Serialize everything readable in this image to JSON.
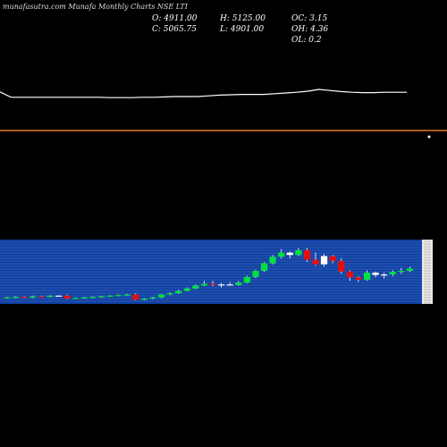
{
  "header": {
    "watermark": "munafasutra.com Munafa Monthly Charts NSE LTI",
    "open": "O: 4911.00",
    "high": "H: 5125.00",
    "oc": "OC: 3.15",
    "close": "C: 5065.75",
    "low": "L: 4901.00",
    "oh": "OH: 4.36",
    "ol": "OL: 0.2"
  },
  "colors": {
    "background": "#000000",
    "line": "#ffffff",
    "separator": "#e07b25",
    "panel": "#0f3fa0",
    "grid": "#4a78d0",
    "up": "#00e040",
    "down": "#e01010",
    "doji": "#ffffff"
  },
  "chart_data": [
    {
      "type": "line",
      "title": "",
      "ylim": [
        0,
        100
      ],
      "values": [
        93,
        78,
        78,
        78,
        78,
        78,
        78,
        78,
        78,
        78,
        77,
        77,
        77,
        78,
        78,
        79,
        80,
        80,
        80,
        82,
        84,
        85,
        86,
        86,
        86,
        88,
        90,
        92,
        95,
        100,
        97,
        94,
        92,
        91,
        91,
        92,
        92,
        92
      ]
    },
    {
      "type": "candlestick",
      "title": "",
      "ylim": [
        0,
        100
      ],
      "candles": [
        {
          "o": 7,
          "h": 9,
          "l": 6,
          "c": 8,
          "d": "up"
        },
        {
          "o": 8,
          "h": 10,
          "l": 7,
          "c": 9,
          "d": "up"
        },
        {
          "o": 9,
          "h": 10,
          "l": 7,
          "c": 8,
          "d": "down"
        },
        {
          "o": 8,
          "h": 11,
          "l": 7,
          "c": 10,
          "d": "up"
        },
        {
          "o": 10,
          "h": 11,
          "l": 8,
          "c": 9,
          "d": "down"
        },
        {
          "o": 9,
          "h": 12,
          "l": 8,
          "c": 11,
          "d": "up"
        },
        {
          "o": 11,
          "h": 12,
          "l": 10,
          "c": 11,
          "d": "doji"
        },
        {
          "o": 11,
          "h": 13,
          "l": 5,
          "c": 6,
          "d": "down"
        },
        {
          "o": 6,
          "h": 8,
          "l": 5,
          "c": 7,
          "d": "up"
        },
        {
          "o": 7,
          "h": 9,
          "l": 6,
          "c": 8,
          "d": "up"
        },
        {
          "o": 8,
          "h": 10,
          "l": 7,
          "c": 9,
          "d": "up"
        },
        {
          "o": 9,
          "h": 11,
          "l": 8,
          "c": 10,
          "d": "up"
        },
        {
          "o": 10,
          "h": 12,
          "l": 9,
          "c": 11,
          "d": "up"
        },
        {
          "o": 11,
          "h": 13,
          "l": 10,
          "c": 12,
          "d": "up"
        },
        {
          "o": 12,
          "h": 14,
          "l": 11,
          "c": 13,
          "d": "up"
        },
        {
          "o": 13,
          "h": 15,
          "l": 3,
          "c": 4,
          "d": "down"
        },
        {
          "o": 4,
          "h": 7,
          "l": 3,
          "c": 6,
          "d": "up"
        },
        {
          "o": 6,
          "h": 9,
          "l": 5,
          "c": 8,
          "d": "up"
        },
        {
          "o": 8,
          "h": 14,
          "l": 7,
          "c": 13,
          "d": "up"
        },
        {
          "o": 13,
          "h": 17,
          "l": 12,
          "c": 15,
          "d": "up"
        },
        {
          "o": 15,
          "h": 21,
          "l": 14,
          "c": 19,
          "d": "up"
        },
        {
          "o": 19,
          "h": 25,
          "l": 18,
          "c": 23,
          "d": "up"
        },
        {
          "o": 23,
          "h": 30,
          "l": 22,
          "c": 28,
          "d": "up"
        },
        {
          "o": 28,
          "h": 36,
          "l": 27,
          "c": 31,
          "d": "up"
        },
        {
          "o": 31,
          "h": 36,
          "l": 27,
          "c": 29,
          "d": "down"
        },
        {
          "o": 29,
          "h": 33,
          "l": 25,
          "c": 30,
          "d": "doji"
        },
        {
          "o": 30,
          "h": 34,
          "l": 28,
          "c": 29,
          "d": "doji"
        },
        {
          "o": 29,
          "h": 36,
          "l": 28,
          "c": 33,
          "d": "up"
        },
        {
          "o": 33,
          "h": 45,
          "l": 32,
          "c": 43,
          "d": "up"
        },
        {
          "o": 43,
          "h": 55,
          "l": 41,
          "c": 53,
          "d": "up"
        },
        {
          "o": 53,
          "h": 68,
          "l": 51,
          "c": 66,
          "d": "up"
        },
        {
          "o": 66,
          "h": 80,
          "l": 64,
          "c": 77,
          "d": "up"
        },
        {
          "o": 77,
          "h": 90,
          "l": 74,
          "c": 84,
          "d": "up"
        },
        {
          "o": 84,
          "h": 86,
          "l": 74,
          "c": 80,
          "d": "doji"
        },
        {
          "o": 80,
          "h": 92,
          "l": 78,
          "c": 88,
          "d": "up"
        },
        {
          "o": 88,
          "h": 92,
          "l": 68,
          "c": 72,
          "d": "down"
        },
        {
          "o": 72,
          "h": 84,
          "l": 62,
          "c": 64,
          "d": "down"
        },
        {
          "o": 64,
          "h": 82,
          "l": 60,
          "c": 78,
          "d": "doji"
        },
        {
          "o": 78,
          "h": 80,
          "l": 66,
          "c": 70,
          "d": "down"
        },
        {
          "o": 70,
          "h": 74,
          "l": 48,
          "c": 52,
          "d": "down"
        },
        {
          "o": 52,
          "h": 54,
          "l": 36,
          "c": 42,
          "d": "down"
        },
        {
          "o": 42,
          "h": 44,
          "l": 34,
          "c": 38,
          "d": "down"
        },
        {
          "o": 38,
          "h": 54,
          "l": 36,
          "c": 50,
          "d": "up"
        },
        {
          "o": 50,
          "h": 52,
          "l": 42,
          "c": 46,
          "d": "doji"
        },
        {
          "o": 46,
          "h": 50,
          "l": 40,
          "c": 47,
          "d": "doji"
        },
        {
          "o": 47,
          "h": 54,
          "l": 44,
          "c": 51,
          "d": "up"
        },
        {
          "o": 51,
          "h": 58,
          "l": 48,
          "c": 53,
          "d": "up"
        },
        {
          "o": 53,
          "h": 60,
          "l": 51,
          "c": 57,
          "d": "up"
        }
      ]
    }
  ]
}
